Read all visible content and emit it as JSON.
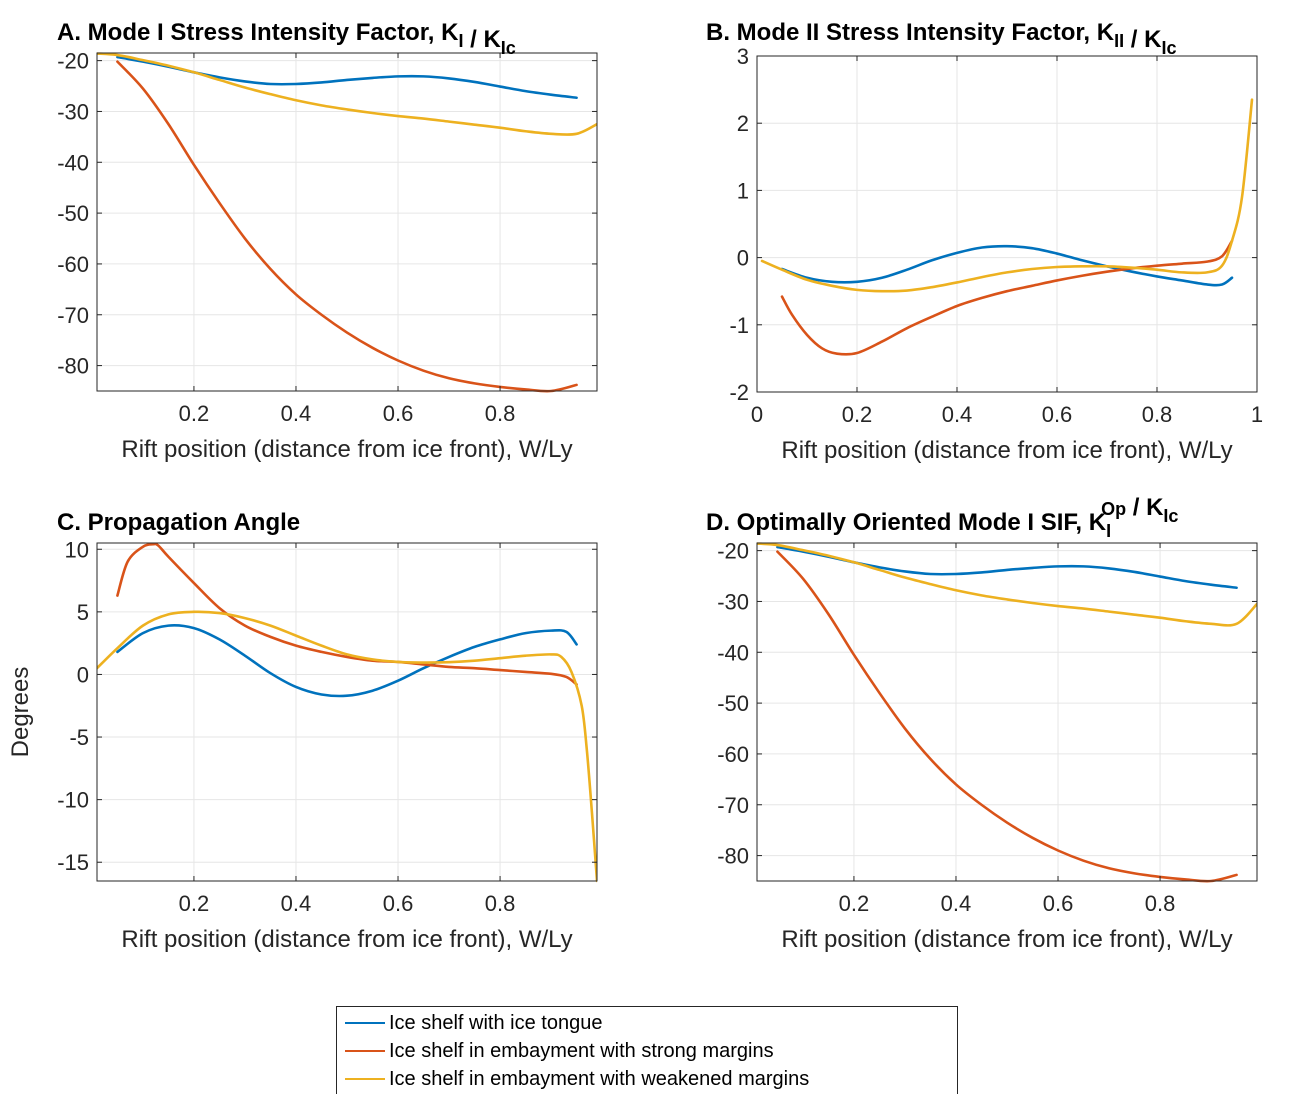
{
  "series_names": [
    "Ice shelf with ice tongue",
    "Ice shelf in embayment with strong margins",
    "Ice shelf in embayment with weakened margins"
  ],
  "colors": [
    "#0072BD",
    "#D95319",
    "#EDB120"
  ],
  "chart_data": [
    {
      "type": "line",
      "title_parts": [
        [
          "A. Mode I Stress Intensity Factor, K",
          ""
        ],
        [
          "I",
          "sub"
        ],
        [
          " / K",
          ""
        ],
        [
          "Ic",
          "sub"
        ]
      ],
      "xlabel": "Rift position (distance from ice front), W/Ly",
      "ylabel": "",
      "xlim": [
        0.01,
        0.99
      ],
      "ylim": [
        -85,
        -18.5
      ],
      "xticks": [
        0.2,
        0.4,
        0.6,
        0.8
      ],
      "yticks": [
        -80,
        -70,
        -60,
        -50,
        -40,
        -30,
        -20
      ],
      "grid": true,
      "series": [
        {
          "name": "Ice shelf with ice tongue",
          "x": [
            0.05,
            0.1,
            0.15,
            0.2,
            0.25,
            0.3,
            0.35,
            0.4,
            0.45,
            0.5,
            0.55,
            0.6,
            0.65,
            0.7,
            0.75,
            0.8,
            0.85,
            0.9,
            0.95
          ],
          "y": [
            -19.3,
            -20.2,
            -21.2,
            -22.3,
            -23.3,
            -24.1,
            -24.6,
            -24.6,
            -24.3,
            -23.8,
            -23.4,
            -23.1,
            -23.1,
            -23.5,
            -24.2,
            -25.1,
            -26.0,
            -26.7,
            -27.3
          ]
        },
        {
          "name": "Ice shelf in embayment with strong margins",
          "x": [
            0.05,
            0.1,
            0.15,
            0.2,
            0.25,
            0.3,
            0.35,
            0.4,
            0.45,
            0.5,
            0.55,
            0.6,
            0.65,
            0.7,
            0.75,
            0.8,
            0.85,
            0.9,
            0.95
          ],
          "y": [
            -20.2,
            -25.5,
            -32.5,
            -40.5,
            -48,
            -55,
            -61,
            -66,
            -70,
            -73.5,
            -76.5,
            -79,
            -81,
            -82.5,
            -83.5,
            -84.2,
            -84.7,
            -85,
            -83.8
          ]
        },
        {
          "name": "Ice shelf in embayment with weakened margins",
          "x": [
            0.01,
            0.05,
            0.1,
            0.15,
            0.2,
            0.25,
            0.3,
            0.35,
            0.4,
            0.45,
            0.5,
            0.55,
            0.6,
            0.65,
            0.7,
            0.75,
            0.8,
            0.85,
            0.9,
            0.95,
            0.99
          ],
          "y": [
            -18.6,
            -18.9,
            -19.9,
            -21.0,
            -22.3,
            -23.8,
            -25.3,
            -26.6,
            -27.8,
            -28.8,
            -29.6,
            -30.3,
            -30.9,
            -31.4,
            -32.0,
            -32.6,
            -33.2,
            -33.9,
            -34.4,
            -34.4,
            -32.5
          ]
        }
      ]
    },
    {
      "type": "line",
      "title_parts": [
        [
          "B. Mode II Stress Intensity Factor, K",
          ""
        ],
        [
          "II",
          "sub"
        ],
        [
          " / K",
          ""
        ],
        [
          "Ic",
          "sub"
        ]
      ],
      "xlabel": "Rift position (distance from ice front), W/Ly",
      "ylabel": "",
      "xlim": [
        0,
        1
      ],
      "ylim": [
        -2,
        3
      ],
      "xticks": [
        0,
        0.2,
        0.4,
        0.6,
        0.8,
        1
      ],
      "yticks": [
        -2,
        -1,
        0,
        1,
        2,
        3
      ],
      "grid": true,
      "series": [
        {
          "name": "Ice shelf with ice tongue",
          "x": [
            0.05,
            0.1,
            0.15,
            0.2,
            0.25,
            0.3,
            0.35,
            0.4,
            0.45,
            0.5,
            0.55,
            0.6,
            0.65,
            0.7,
            0.75,
            0.8,
            0.85,
            0.9,
            0.93,
            0.95
          ],
          "y": [
            -0.17,
            -0.3,
            -0.36,
            -0.36,
            -0.3,
            -0.18,
            -0.04,
            0.07,
            0.15,
            0.17,
            0.14,
            0.06,
            -0.04,
            -0.13,
            -0.21,
            -0.28,
            -0.34,
            -0.4,
            -0.4,
            -0.3
          ]
        },
        {
          "name": "Ice shelf in embayment with strong margins",
          "x": [
            0.05,
            0.07,
            0.1,
            0.13,
            0.16,
            0.2,
            0.25,
            0.3,
            0.35,
            0.4,
            0.45,
            0.5,
            0.55,
            0.6,
            0.65,
            0.7,
            0.75,
            0.8,
            0.85,
            0.9,
            0.93,
            0.95
          ],
          "y": [
            -0.58,
            -0.85,
            -1.15,
            -1.35,
            -1.43,
            -1.42,
            -1.25,
            -1.05,
            -0.88,
            -0.72,
            -0.6,
            -0.5,
            -0.42,
            -0.34,
            -0.27,
            -0.21,
            -0.16,
            -0.12,
            -0.09,
            -0.06,
            0.02,
            0.25
          ]
        },
        {
          "name": "Ice shelf in embayment with weakened margins",
          "x": [
            0.01,
            0.05,
            0.1,
            0.15,
            0.2,
            0.25,
            0.3,
            0.35,
            0.4,
            0.45,
            0.5,
            0.55,
            0.6,
            0.65,
            0.7,
            0.75,
            0.8,
            0.85,
            0.9,
            0.93,
            0.95,
            0.97,
            0.99
          ],
          "y": [
            -0.05,
            -0.18,
            -0.33,
            -0.42,
            -0.48,
            -0.5,
            -0.49,
            -0.44,
            -0.37,
            -0.29,
            -0.22,
            -0.17,
            -0.14,
            -0.13,
            -0.13,
            -0.15,
            -0.18,
            -0.22,
            -0.22,
            -0.12,
            0.25,
            0.9,
            2.35
          ]
        }
      ]
    },
    {
      "type": "line",
      "title_parts": [
        [
          "C. Propagation Angle",
          ""
        ]
      ],
      "xlabel": "Rift position (distance from ice front), W/Ly",
      "ylabel": "Degrees",
      "xlim": [
        0.01,
        0.99
      ],
      "ylim": [
        -16.5,
        10.5
      ],
      "xticks": [
        0.2,
        0.4,
        0.6,
        0.8
      ],
      "yticks": [
        -15,
        -10,
        -5,
        0,
        5,
        10
      ],
      "grid": true,
      "series": [
        {
          "name": "Ice shelf with ice tongue",
          "x": [
            0.05,
            0.1,
            0.15,
            0.2,
            0.25,
            0.3,
            0.35,
            0.4,
            0.45,
            0.5,
            0.55,
            0.6,
            0.65,
            0.7,
            0.75,
            0.8,
            0.85,
            0.9,
            0.93,
            0.95
          ],
          "y": [
            1.8,
            3.3,
            3.9,
            3.7,
            2.8,
            1.5,
            0.1,
            -1.0,
            -1.6,
            -1.7,
            -1.3,
            -0.5,
            0.5,
            1.4,
            2.2,
            2.8,
            3.3,
            3.5,
            3.4,
            2.4
          ]
        },
        {
          "name": "Ice shelf in embayment with strong margins",
          "x": [
            0.05,
            0.07,
            0.1,
            0.12,
            0.13,
            0.15,
            0.2,
            0.25,
            0.3,
            0.35,
            0.4,
            0.45,
            0.5,
            0.55,
            0.6,
            0.65,
            0.7,
            0.75,
            0.8,
            0.85,
            0.9,
            0.93,
            0.95
          ],
          "y": [
            6.3,
            9.0,
            10.2,
            10.4,
            10.3,
            9.4,
            7.3,
            5.3,
            3.9,
            3.0,
            2.3,
            1.8,
            1.4,
            1.1,
            1.0,
            0.8,
            0.6,
            0.5,
            0.35,
            0.2,
            0.05,
            -0.2,
            -0.8
          ]
        },
        {
          "name": "Ice shelf in embayment with weakened margins",
          "x": [
            0.01,
            0.05,
            0.1,
            0.15,
            0.2,
            0.25,
            0.3,
            0.35,
            0.4,
            0.45,
            0.5,
            0.55,
            0.6,
            0.65,
            0.7,
            0.75,
            0.8,
            0.85,
            0.9,
            0.92,
            0.94,
            0.96,
            0.97,
            0.98,
            0.99
          ],
          "y": [
            0.5,
            2.1,
            3.9,
            4.8,
            5.0,
            4.9,
            4.5,
            3.9,
            3.1,
            2.3,
            1.6,
            1.2,
            1.0,
            0.95,
            0.98,
            1.1,
            1.3,
            1.5,
            1.6,
            1.4,
            0.2,
            -2.5,
            -6,
            -11,
            -16.5
          ]
        }
      ]
    },
    {
      "type": "line",
      "title_parts": [
        [
          "D. Optimally Oriented Mode I SIF, K",
          ""
        ],
        [
          "I",
          "subsup",
          "Op"
        ],
        [
          " / K",
          ""
        ],
        [
          "Ic",
          "sub"
        ]
      ],
      "xlabel": "Rift position (distance from ice front), W/Ly",
      "ylabel": "",
      "xlim": [
        0.01,
        0.99
      ],
      "ylim": [
        -85,
        -18.5
      ],
      "xticks": [
        0.2,
        0.4,
        0.6,
        0.8
      ],
      "yticks": [
        -80,
        -70,
        -60,
        -50,
        -40,
        -30,
        -20
      ],
      "grid": true,
      "series": [
        {
          "name": "Ice shelf with ice tongue",
          "x": [
            0.05,
            0.1,
            0.15,
            0.2,
            0.25,
            0.3,
            0.35,
            0.4,
            0.45,
            0.5,
            0.55,
            0.6,
            0.65,
            0.7,
            0.75,
            0.8,
            0.85,
            0.9,
            0.95
          ],
          "y": [
            -19.3,
            -20.2,
            -21.2,
            -22.3,
            -23.3,
            -24.1,
            -24.6,
            -24.6,
            -24.3,
            -23.8,
            -23.4,
            -23.1,
            -23.1,
            -23.5,
            -24.2,
            -25.1,
            -26.0,
            -26.7,
            -27.3
          ]
        },
        {
          "name": "Ice shelf in embayment with strong margins",
          "x": [
            0.05,
            0.1,
            0.15,
            0.2,
            0.25,
            0.3,
            0.35,
            0.4,
            0.45,
            0.5,
            0.55,
            0.6,
            0.65,
            0.7,
            0.75,
            0.8,
            0.85,
            0.9,
            0.95
          ],
          "y": [
            -20.2,
            -25.5,
            -32.5,
            -40.5,
            -48,
            -55,
            -61,
            -66,
            -70,
            -73.5,
            -76.5,
            -79,
            -81,
            -82.5,
            -83.5,
            -84.2,
            -84.7,
            -85,
            -83.8
          ]
        },
        {
          "name": "Ice shelf in embayment with weakened margins",
          "x": [
            0.01,
            0.05,
            0.1,
            0.15,
            0.2,
            0.25,
            0.3,
            0.35,
            0.4,
            0.45,
            0.5,
            0.55,
            0.6,
            0.65,
            0.7,
            0.75,
            0.8,
            0.85,
            0.9,
            0.95,
            0.99
          ],
          "y": [
            -18.6,
            -18.9,
            -19.9,
            -21.0,
            -22.3,
            -23.8,
            -25.3,
            -26.6,
            -27.8,
            -28.8,
            -29.6,
            -30.3,
            -30.9,
            -31.4,
            -32.0,
            -32.6,
            -33.2,
            -33.9,
            -34.4,
            -34.4,
            -30.5
          ]
        }
      ]
    }
  ],
  "legend": {
    "entries": [
      "Ice shelf with ice tongue",
      "Ice shelf in embayment with strong margins",
      "Ice shelf in embayment with weakened margins"
    ],
    "placement": "bottom-center"
  }
}
